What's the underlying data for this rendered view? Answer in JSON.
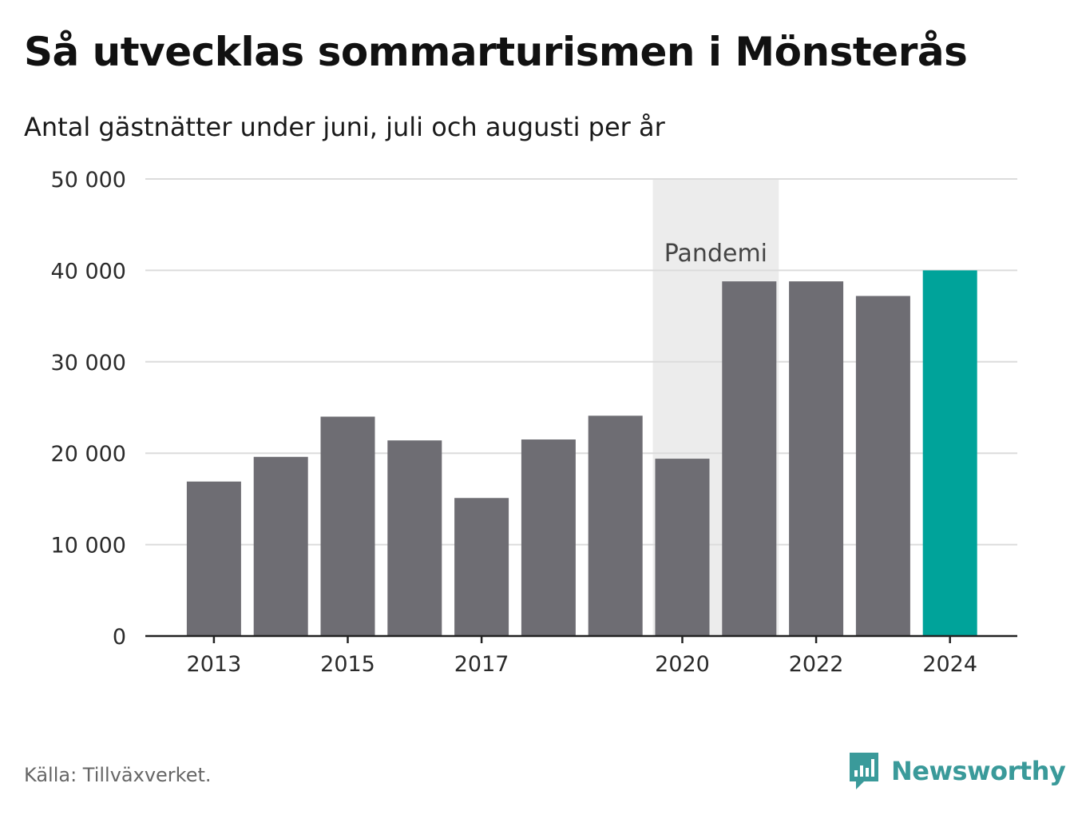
{
  "header": {
    "title": "Så utvecklas sommarturismen i Mönsterås",
    "subtitle": "Antal gästnätter under juni, juli och augusti per år"
  },
  "chart_data": {
    "type": "bar",
    "title": "Så utvecklas sommarturismen i Mönsterås",
    "subtitle": "Antal gästnätter under juni, juli och augusti per år",
    "xlabel": "",
    "ylabel": "",
    "categories": [
      "2013",
      "2014",
      "2015",
      "2016",
      "2017",
      "2018",
      "2019",
      "2020",
      "2021",
      "2022",
      "2023",
      "2024"
    ],
    "values": [
      16900,
      19600,
      24000,
      21400,
      15100,
      21500,
      24100,
      19400,
      38800,
      38800,
      37200,
      40000
    ],
    "x_tick_labels": [
      "2013",
      "2015",
      "2017",
      "2020",
      "2022",
      "2024"
    ],
    "y_ticks": [
      0,
      10000,
      20000,
      30000,
      40000,
      50000
    ],
    "y_tick_labels": [
      "0",
      "10 000",
      "20 000",
      "30 000",
      "40 000",
      "50 000"
    ],
    "ylim": [
      0,
      50000
    ],
    "grid": true,
    "highlight": {
      "category": "2024",
      "color": "#00a39a"
    },
    "bar_color": "#6e6d73",
    "annotation": {
      "label": "Pandemi",
      "from": "2020",
      "to": "2021",
      "color": "#ececec"
    }
  },
  "footer": {
    "source": "Källa: Tillväxverket.",
    "brand": "Newsworthy",
    "brand_color": "#3a9a9a",
    "brand_icon": "bar-chart-bubble-icon"
  }
}
